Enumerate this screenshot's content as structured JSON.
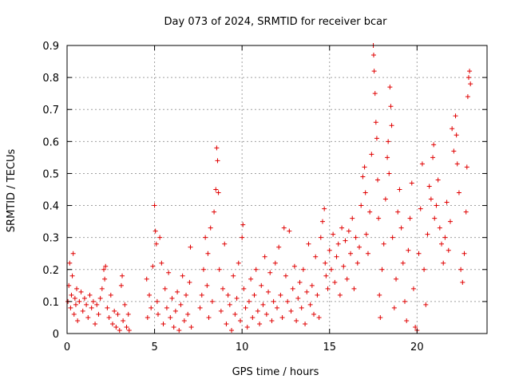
{
  "chart_data": {
    "type": "scatter",
    "title": "Day 073 of 2024, SRMTID for receiver bcar",
    "xlabel": "GPS time / hours",
    "ylabel": "SRMTID / TECUs",
    "xlim": [
      0,
      24
    ],
    "ylim": [
      0,
      0.9
    ],
    "x_ticks": [
      0,
      5,
      10,
      15,
      20
    ],
    "x_tick_labels": [
      "0",
      "5",
      "10",
      "15",
      "20"
    ],
    "y_ticks": [
      0,
      0.1,
      0.2,
      0.3,
      0.4,
      0.5,
      0.6,
      0.7,
      0.8,
      0.9
    ],
    "y_tick_labels": [
      "0",
      "0.1",
      "0.2",
      "0.3",
      "0.4",
      "0.5",
      "0.6",
      "0.7",
      "0.8",
      "0.9"
    ],
    "grid": true,
    "marker": "plus",
    "color": "#e00000",
    "series": [
      {
        "name": "SRMTID",
        "points": [
          [
            0.05,
            0.1
          ],
          [
            0.1,
            0.15
          ],
          [
            0.15,
            0.22
          ],
          [
            0.2,
            0.08
          ],
          [
            0.25,
            0.12
          ],
          [
            0.3,
            0.18
          ],
          [
            0.35,
            0.25
          ],
          [
            0.4,
            0.06
          ],
          [
            0.45,
            0.11
          ],
          [
            0.5,
            0.09
          ],
          [
            0.55,
            0.14
          ],
          [
            0.6,
            0.04
          ],
          [
            0.7,
            0.1
          ],
          [
            0.8,
            0.13
          ],
          [
            0.9,
            0.07
          ],
          [
            1.0,
            0.11
          ],
          [
            1.1,
            0.09
          ],
          [
            1.2,
            0.05
          ],
          [
            1.3,
            0.12
          ],
          [
            1.4,
            0.08
          ],
          [
            1.5,
            0.1
          ],
          [
            1.6,
            0.03
          ],
          [
            1.7,
            0.09
          ],
          [
            1.8,
            0.06
          ],
          [
            1.9,
            0.11
          ],
          [
            2.0,
            0.14
          ],
          [
            2.1,
            0.2
          ],
          [
            2.15,
            0.17
          ],
          [
            2.2,
            0.21
          ],
          [
            2.3,
            0.08
          ],
          [
            2.4,
            0.05
          ],
          [
            2.5,
            0.12
          ],
          [
            2.6,
            0.03
          ],
          [
            2.7,
            0.07
          ],
          [
            2.8,
            0.02
          ],
          [
            2.9,
            0.06
          ],
          [
            3.0,
            0.01
          ],
          [
            3.1,
            0.15
          ],
          [
            3.15,
            0.18
          ],
          [
            3.2,
            0.04
          ],
          [
            3.3,
            0.09
          ],
          [
            3.4,
            0.02
          ],
          [
            3.5,
            0.06
          ],
          [
            3.55,
            0.01
          ],
          [
            4.55,
            0.17
          ],
          [
            4.6,
            0.05
          ],
          [
            4.7,
            0.12
          ],
          [
            4.8,
            0.08
          ],
          [
            4.9,
            0.21
          ],
          [
            5.0,
            0.4
          ],
          [
            5.05,
            0.32
          ],
          [
            5.1,
            0.28
          ],
          [
            5.15,
            0.1
          ],
          [
            5.2,
            0.06
          ],
          [
            5.3,
            0.3
          ],
          [
            5.4,
            0.22
          ],
          [
            5.5,
            0.03
          ],
          [
            5.6,
            0.14
          ],
          [
            5.7,
            0.08
          ],
          [
            5.8,
            0.19
          ],
          [
            5.9,
            0.05
          ],
          [
            6.0,
            0.11
          ],
          [
            6.1,
            0.02
          ],
          [
            6.2,
            0.07
          ],
          [
            6.3,
            0.13
          ],
          [
            6.4,
            0.01
          ],
          [
            6.5,
            0.09
          ],
          [
            6.6,
            0.18
          ],
          [
            6.7,
            0.04
          ],
          [
            6.8,
            0.12
          ],
          [
            6.9,
            0.06
          ],
          [
            7.0,
            0.16
          ],
          [
            7.05,
            0.27
          ],
          [
            7.1,
            0.02
          ],
          [
            7.6,
            0.08
          ],
          [
            7.7,
            0.12
          ],
          [
            7.8,
            0.2
          ],
          [
            7.9,
            0.3
          ],
          [
            8.0,
            0.15
          ],
          [
            8.05,
            0.25
          ],
          [
            8.1,
            0.05
          ],
          [
            8.2,
            0.33
          ],
          [
            8.3,
            0.1
          ],
          [
            8.4,
            0.38
          ],
          [
            8.5,
            0.45
          ],
          [
            8.55,
            0.58
          ],
          [
            8.6,
            0.54
          ],
          [
            8.65,
            0.44
          ],
          [
            8.7,
            0.2
          ],
          [
            8.8,
            0.07
          ],
          [
            8.9,
            0.14
          ],
          [
            9.0,
            0.28
          ],
          [
            9.1,
            0.03
          ],
          [
            9.2,
            0.12
          ],
          [
            9.3,
            0.09
          ],
          [
            9.4,
            0.01
          ],
          [
            9.5,
            0.18
          ],
          [
            9.6,
            0.06
          ],
          [
            9.7,
            0.11
          ],
          [
            9.8,
            0.22
          ],
          [
            9.9,
            0.04
          ],
          [
            10.0,
            0.3
          ],
          [
            10.05,
            0.34
          ],
          [
            10.1,
            0.14
          ],
          [
            10.2,
            0.08
          ],
          [
            10.3,
            0.02
          ],
          [
            10.4,
            0.1
          ],
          [
            10.5,
            0.17
          ],
          [
            10.6,
            0.05
          ],
          [
            10.7,
            0.12
          ],
          [
            10.8,
            0.2
          ],
          [
            10.9,
            0.07
          ],
          [
            11.0,
            0.03
          ],
          [
            11.1,
            0.15
          ],
          [
            11.2,
            0.09
          ],
          [
            11.3,
            0.24
          ],
          [
            11.4,
            0.06
          ],
          [
            11.5,
            0.13
          ],
          [
            11.6,
            0.19
          ],
          [
            11.7,
            0.04
          ],
          [
            11.8,
            0.1
          ],
          [
            11.9,
            0.22
          ],
          [
            12.0,
            0.08
          ],
          [
            12.1,
            0.27
          ],
          [
            12.2,
            0.12
          ],
          [
            12.3,
            0.05
          ],
          [
            12.4,
            0.33
          ],
          [
            12.5,
            0.18
          ],
          [
            12.6,
            0.1
          ],
          [
            12.7,
            0.32
          ],
          [
            12.8,
            0.07
          ],
          [
            12.9,
            0.14
          ],
          [
            13.0,
            0.21
          ],
          [
            13.1,
            0.04
          ],
          [
            13.2,
            0.11
          ],
          [
            13.3,
            0.16
          ],
          [
            13.4,
            0.08
          ],
          [
            13.5,
            0.2
          ],
          [
            13.6,
            0.03
          ],
          [
            13.7,
            0.13
          ],
          [
            13.8,
            0.28
          ],
          [
            13.9,
            0.09
          ],
          [
            14.0,
            0.15
          ],
          [
            14.1,
            0.06
          ],
          [
            14.2,
            0.24
          ],
          [
            14.3,
            0.12
          ],
          [
            14.4,
            0.05
          ],
          [
            14.5,
            0.3
          ],
          [
            14.6,
            0.35
          ],
          [
            14.7,
            0.39
          ],
          [
            14.75,
            0.22
          ],
          [
            14.8,
            0.18
          ],
          [
            14.9,
            0.14
          ],
          [
            15.0,
            0.26
          ],
          [
            15.1,
            0.2
          ],
          [
            15.2,
            0.31
          ],
          [
            15.3,
            0.16
          ],
          [
            15.4,
            0.24
          ],
          [
            15.5,
            0.28
          ],
          [
            15.6,
            0.12
          ],
          [
            15.7,
            0.33
          ],
          [
            15.8,
            0.21
          ],
          [
            15.9,
            0.29
          ],
          [
            16.0,
            0.17
          ],
          [
            16.1,
            0.32
          ],
          [
            16.2,
            0.25
          ],
          [
            16.3,
            0.36
          ],
          [
            16.4,
            0.14
          ],
          [
            16.5,
            0.3
          ],
          [
            16.6,
            0.22
          ],
          [
            16.7,
            0.27
          ],
          [
            16.8,
            0.4
          ],
          [
            16.9,
            0.49
          ],
          [
            17.0,
            0.52
          ],
          [
            17.05,
            0.44
          ],
          [
            17.1,
            0.31
          ],
          [
            17.2,
            0.25
          ],
          [
            17.3,
            0.38
          ],
          [
            17.4,
            0.56
          ],
          [
            17.5,
            0.9
          ],
          [
            17.52,
            0.87
          ],
          [
            17.55,
            0.82
          ],
          [
            17.6,
            0.75
          ],
          [
            17.65,
            0.66
          ],
          [
            17.7,
            0.61
          ],
          [
            17.75,
            0.48
          ],
          [
            17.8,
            0.36
          ],
          [
            17.85,
            0.12
          ],
          [
            17.9,
            0.05
          ],
          [
            18.0,
            0.2
          ],
          [
            18.1,
            0.28
          ],
          [
            18.2,
            0.42
          ],
          [
            18.3,
            0.55
          ],
          [
            18.35,
            0.6
          ],
          [
            18.4,
            0.5
          ],
          [
            18.45,
            0.77
          ],
          [
            18.5,
            0.71
          ],
          [
            18.55,
            0.65
          ],
          [
            18.6,
            0.3
          ],
          [
            18.7,
            0.08
          ],
          [
            18.8,
            0.17
          ],
          [
            18.9,
            0.38
          ],
          [
            19.0,
            0.45
          ],
          [
            19.1,
            0.33
          ],
          [
            19.2,
            0.22
          ],
          [
            19.3,
            0.1
          ],
          [
            19.4,
            0.04
          ],
          [
            19.5,
            0.26
          ],
          [
            19.6,
            0.36
          ],
          [
            19.7,
            0.47
          ],
          [
            19.8,
            0.14
          ],
          [
            19.9,
            0.02
          ],
          [
            20.0,
            0.01
          ],
          [
            20.1,
            0.25
          ],
          [
            20.2,
            0.39
          ],
          [
            20.3,
            0.53
          ],
          [
            20.4,
            0.2
          ],
          [
            20.5,
            0.09
          ],
          [
            20.6,
            0.31
          ],
          [
            20.7,
            0.46
          ],
          [
            20.8,
            0.42
          ],
          [
            20.9,
            0.55
          ],
          [
            20.95,
            0.59
          ],
          [
            21.0,
            0.36
          ],
          [
            21.1,
            0.4
          ],
          [
            21.2,
            0.48
          ],
          [
            21.3,
            0.33
          ],
          [
            21.4,
            0.28
          ],
          [
            21.5,
            0.22
          ],
          [
            21.6,
            0.3
          ],
          [
            21.7,
            0.41
          ],
          [
            21.8,
            0.26
          ],
          [
            21.9,
            0.35
          ],
          [
            22.0,
            0.64
          ],
          [
            22.1,
            0.57
          ],
          [
            22.2,
            0.68
          ],
          [
            22.25,
            0.62
          ],
          [
            22.3,
            0.53
          ],
          [
            22.4,
            0.44
          ],
          [
            22.5,
            0.2
          ],
          [
            22.6,
            0.16
          ],
          [
            22.7,
            0.25
          ],
          [
            22.8,
            0.38
          ],
          [
            22.85,
            0.52
          ],
          [
            22.9,
            0.74
          ],
          [
            22.95,
            0.8
          ],
          [
            23.0,
            0.82
          ],
          [
            23.05,
            0.78
          ]
        ]
      }
    ]
  }
}
